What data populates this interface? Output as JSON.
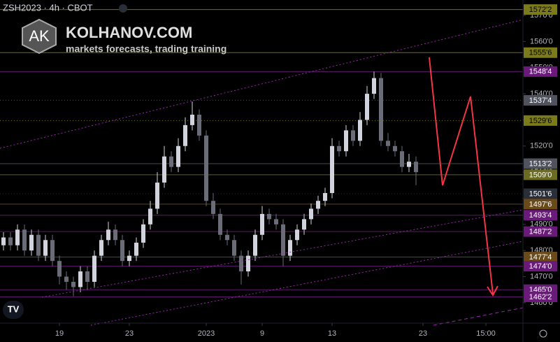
{
  "chart_data": {
    "type": "candlestick",
    "title": "ZSH2023 · 4h · CBOT",
    "brand": {
      "logo": "AK",
      "name": "KOLHANOV.COM",
      "tagline": "markets forecasts, trading training"
    },
    "open": [
      1482,
      1485,
      1482,
      1488,
      1480,
      1486,
      1478,
      1484,
      1476,
      1470,
      1468,
      1466,
      1472,
      1468,
      1478,
      1484,
      1488,
      1484,
      1476,
      1478,
      1483,
      1490,
      1496,
      1506,
      1516,
      1512,
      1520,
      1528,
      1532,
      1524,
      1499,
      1494,
      1486,
      1484,
      1478,
      1472,
      1478,
      1486,
      1494,
      1492,
      1490,
      1478,
      1484,
      1488,
      1492,
      1496,
      1499,
      1502,
      1520,
      1518,
      1526,
      1522,
      1530,
      1540,
      1546,
      1522,
      1520,
      1518,
      1512,
      1514
    ],
    "high": [
      1487,
      1487,
      1490,
      1490,
      1488,
      1488,
      1486,
      1486,
      1478,
      1472,
      1470,
      1474,
      1474,
      1480,
      1486,
      1491,
      1490,
      1486,
      1480,
      1485,
      1492,
      1499,
      1510,
      1520,
      1518,
      1523,
      1531,
      1537,
      1534,
      1526,
      1502,
      1496,
      1488,
      1486,
      1480,
      1480,
      1488,
      1497,
      1496,
      1494,
      1492,
      1486,
      1490,
      1494,
      1498,
      1501,
      1504,
      1523,
      1522,
      1528,
      1528,
      1533,
      1543,
      1548.5,
      1548,
      1525,
      1522,
      1520,
      1517,
      1516
    ],
    "low": [
      1480,
      1480,
      1480,
      1478,
      1478,
      1476,
      1476,
      1474,
      1467,
      1465,
      1462.5,
      1464,
      1465,
      1466,
      1476,
      1482,
      1482,
      1474,
      1474,
      1476,
      1481,
      1488,
      1494,
      1504,
      1510,
      1510,
      1518,
      1526,
      1522,
      1497,
      1492,
      1484,
      1482,
      1476,
      1467,
      1470,
      1476,
      1484,
      1490,
      1488,
      1474,
      1476,
      1482,
      1486,
      1490,
      1494,
      1497,
      1500,
      1516,
      1516,
      1520,
      1520,
      1528,
      1538,
      1520,
      1518,
      1516,
      1510,
      1510,
      1505
    ],
    "close": [
      1485,
      1482,
      1488,
      1480,
      1486,
      1478,
      1484,
      1476,
      1470,
      1468,
      1466,
      1472,
      1468,
      1478,
      1484,
      1488,
      1484,
      1476,
      1478,
      1483,
      1490,
      1496,
      1506,
      1516,
      1512,
      1520,
      1528,
      1532,
      1524,
      1499,
      1494,
      1486,
      1484,
      1478,
      1472,
      1478,
      1486,
      1494,
      1492,
      1490,
      1478,
      1484,
      1488,
      1492,
      1496,
      1499,
      1502,
      1520,
      1518,
      1526,
      1522,
      1530,
      1540,
      1546,
      1522,
      1520,
      1518,
      1512,
      1514,
      1510
    ],
    "up_color": "#d1d4dc",
    "down_color": "#6a6d78",
    "xlim": [
      -0.5,
      74.3
    ],
    "xticks": [
      {
        "value": 8,
        "label": "19"
      },
      {
        "value": 18,
        "label": "23"
      },
      {
        "value": 29,
        "label": "2023"
      },
      {
        "value": 37,
        "label": "9"
      },
      {
        "value": 47,
        "label": "13"
      },
      {
        "value": 60,
        "label": "23"
      },
      {
        "value": 69,
        "label": "15:00"
      }
    ],
    "ylim": [
      1452.2,
      1575.9
    ],
    "yticks": [
      {
        "value": 1460,
        "label": "1460'0"
      },
      {
        "value": 1470,
        "label": "1470'0"
      },
      {
        "value": 1480,
        "label": "1480'0"
      },
      {
        "value": 1490,
        "label": "1490'0"
      },
      {
        "value": 1500,
        "label": "1500'0"
      },
      {
        "value": 1510,
        "label": "1510'0"
      },
      {
        "value": 1520,
        "label": "1520'0"
      },
      {
        "value": 1530,
        "label": "1530'0"
      },
      {
        "value": 1540,
        "label": "1540'0"
      },
      {
        "value": 1550,
        "label": "1550'0"
      },
      {
        "value": 1560,
        "label": "1560'0"
      },
      {
        "value": 1570,
        "label": "1570'0"
      }
    ],
    "grid": false,
    "levels": [
      {
        "value": 1572.25,
        "label": "1572'2",
        "color": "#7b7b1c",
        "text_color": "#000000",
        "style": "solid"
      },
      {
        "value": 1555.75,
        "label": "1555'6",
        "color": "#7b7b1c",
        "text_color": "#000000",
        "style": "solid"
      },
      {
        "value": 1548.5,
        "label": "1548'4",
        "color": "#6a1b7a",
        "text_color": "#ffffff",
        "style": "solid"
      },
      {
        "value": 1537.5,
        "label": "1537'4",
        "color": "#50535e",
        "text_color": "#ffffff",
        "style": "dotted"
      },
      {
        "value": 1529.75,
        "label": "1529'6",
        "color": "#7b7b1c",
        "text_color": "#000000",
        "style": "dotted"
      },
      {
        "value": 1513.25,
        "label": "1513'2",
        "color": "#50535e",
        "text_color": "#ffffff",
        "style": "solid"
      },
      {
        "value": 1509,
        "label": "1509'0",
        "color": "#6b6b22",
        "text_color": "#ffffff",
        "style": "solid"
      },
      {
        "value": 1501.75,
        "label": "1501'6",
        "color": "#2a2e39",
        "text_color": "#ffffff",
        "style": "dotted"
      },
      {
        "value": 1497.75,
        "label": "1497'6",
        "color": "#6b4a1a",
        "text_color": "#ffffff",
        "style": "solid"
      },
      {
        "value": 1493.5,
        "label": "1493'4",
        "color": "#6a1b7a",
        "text_color": "#ffffff",
        "style": "solid"
      },
      {
        "value": 1487.25,
        "label": "1487'2",
        "color": "#6a1b7a",
        "text_color": "#ffffff",
        "style": "solid"
      },
      {
        "value": 1477.5,
        "label": "1477'4",
        "color": "#6b4a1a",
        "text_color": "#ffffff",
        "style": "solid"
      },
      {
        "value": 1474,
        "label": "1474'0",
        "color": "#6a1b7a",
        "text_color": "#ffffff",
        "style": "solid"
      },
      {
        "value": 1465,
        "label": "1465'0",
        "color": "#6a1b7a",
        "text_color": "#ffffff",
        "style": "solid"
      },
      {
        "value": 1462.25,
        "label": "1462'2",
        "color": "#6a1b7a",
        "text_color": "#ffffff",
        "style": "solid"
      }
    ]
  }
}
